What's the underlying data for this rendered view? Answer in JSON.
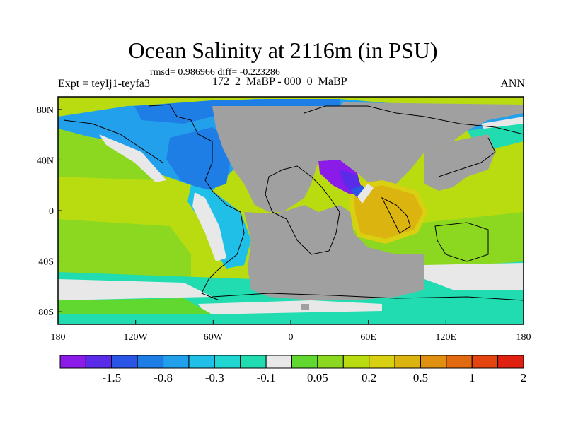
{
  "figure": {
    "title": "Ocean Salinity at 2116m (in PSU)",
    "stats": "rmsd= 0.986966 diff= -0.223286",
    "left_label": "Expt = teyIj1-teyfa3",
    "center_label": "172_2_MaBP - 000_0_MaBP",
    "right_label": "ANN"
  },
  "map": {
    "lon_range": [
      -180,
      180
    ],
    "lat_range": [
      -90,
      90
    ],
    "x_tick_labels": [
      "180",
      "120W",
      "60W",
      "0",
      "60E",
      "120E",
      "180"
    ],
    "y_tick_labels": [
      "80N",
      "40N",
      "0",
      "40S",
      "80S"
    ],
    "land_color": "#a0a0a0"
  },
  "colorbar": {
    "colors": [
      "#8a1be8",
      "#5a2be8",
      "#2a55e6",
      "#1e7ee6",
      "#22a0ec",
      "#20bfe8",
      "#1fd6d0",
      "#20dcb0",
      "#e8e8e8",
      "#60d830",
      "#8cd820",
      "#b8dc10",
      "#d8d010",
      "#dcb410",
      "#e09010",
      "#e26a10",
      "#e44410",
      "#e02010"
    ],
    "labels": [
      "-1.5",
      "-0.8",
      "-0.3",
      "-0.1",
      "0.05",
      "0.2",
      "0.5",
      "1",
      "2"
    ]
  }
}
